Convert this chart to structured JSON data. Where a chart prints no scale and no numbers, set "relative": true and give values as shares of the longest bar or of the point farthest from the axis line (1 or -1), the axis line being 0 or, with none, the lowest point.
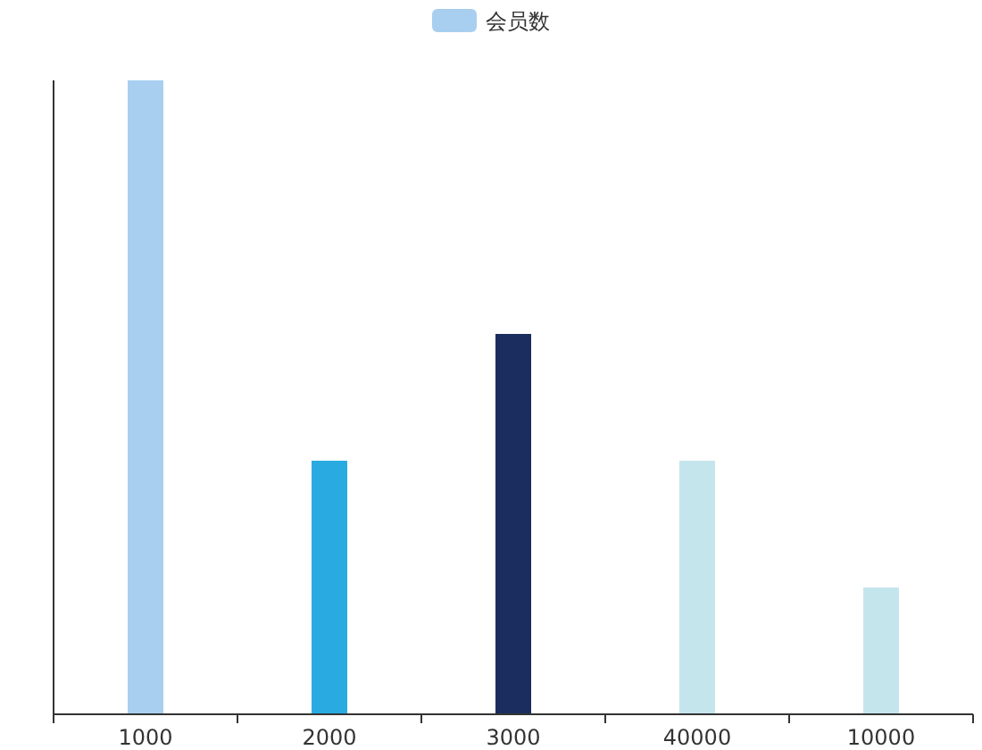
{
  "chart_data": {
    "type": "bar",
    "relative": true,
    "categories": [
      "1000",
      "2000",
      "3000",
      "40000",
      "10000"
    ],
    "series": [
      {
        "name": "会员数",
        "color": "#a8cff0",
        "values": [
          1,
          0.4,
          0.6,
          0.4,
          0.2
        ],
        "colors": [
          "#a8cff0",
          "#29abe2",
          "#1b2d5e",
          "#c5e5ec",
          "#c5e5ec"
        ]
      }
    ],
    "legend": "top"
  }
}
